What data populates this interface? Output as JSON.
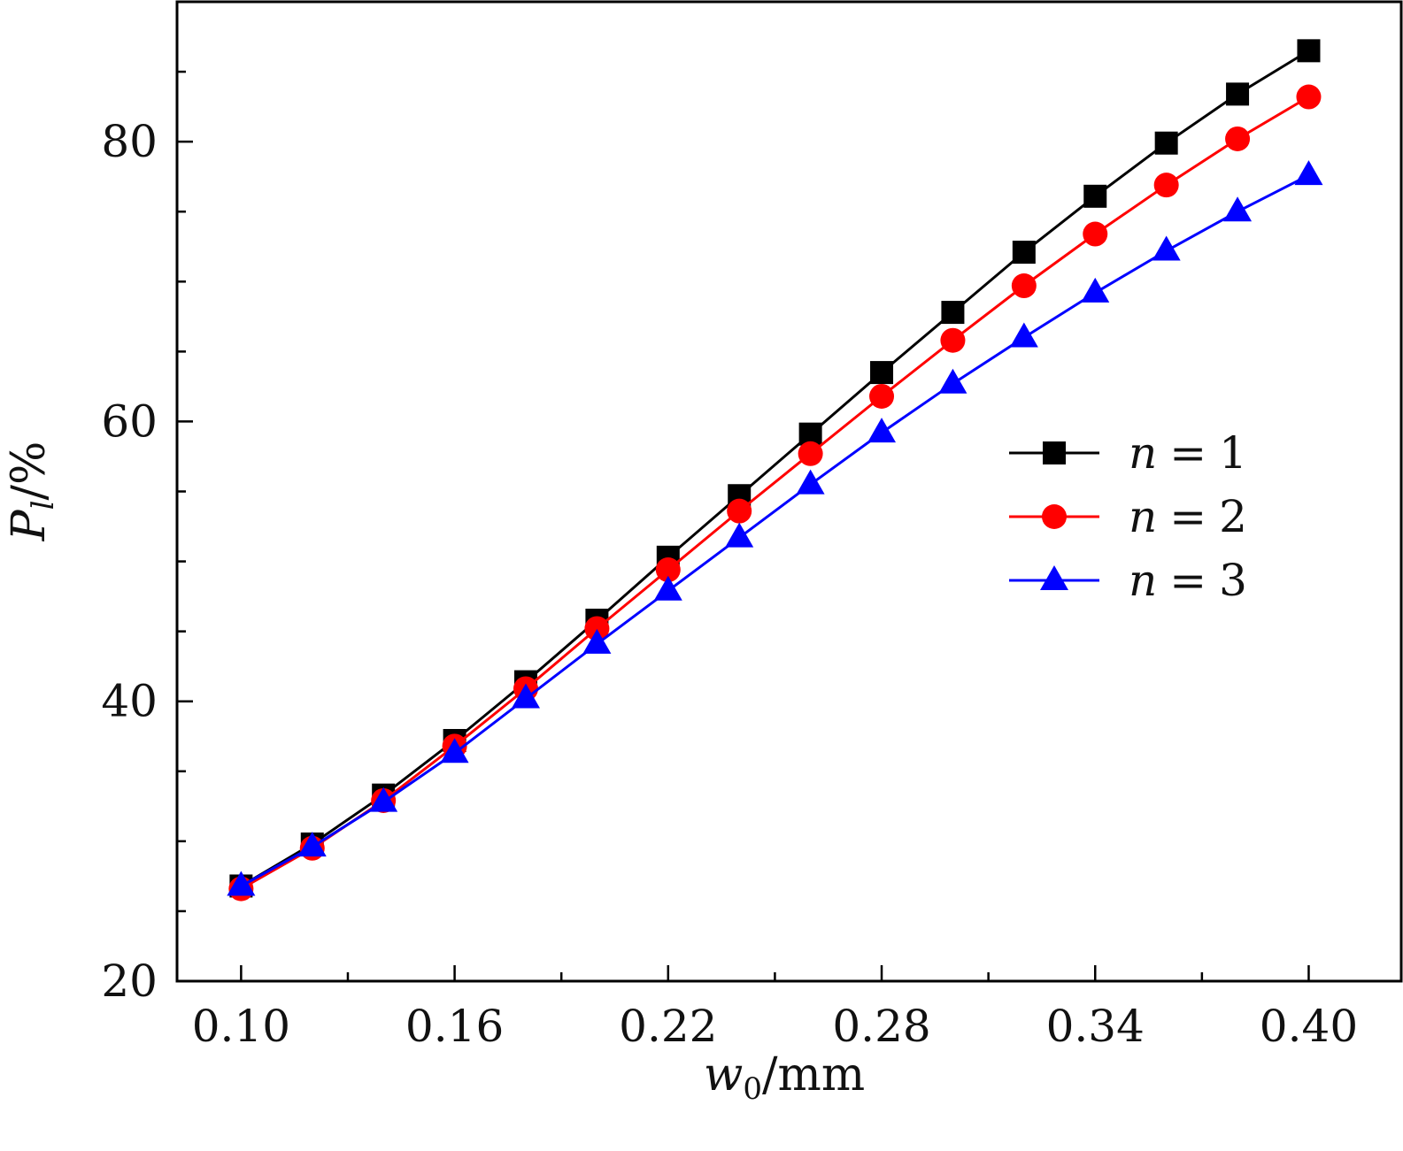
{
  "chart_data": {
    "type": "line",
    "title": "",
    "xlabel": "w0/mm",
    "xlabel_main": "w",
    "xlabel_sub": "0",
    "xlabel_unit": "/mm",
    "ylabel": "Pl/%",
    "ylabel_main": "P",
    "ylabel_sub": "l",
    "ylabel_unit": "/%",
    "xlim": [
      0.082,
      0.426
    ],
    "ylim": [
      20,
      90
    ],
    "x_ticks": [
      0.1,
      0.16,
      0.22,
      0.28,
      0.34,
      0.4
    ],
    "x_tick_labels": [
      "0.10",
      "0.16",
      "0.22",
      "0.28",
      "0.34",
      "0.40"
    ],
    "x_minor_ticks": [
      0.13,
      0.19,
      0.25,
      0.31,
      0.37
    ],
    "y_ticks": [
      20,
      40,
      60,
      80
    ],
    "y_tick_labels": [
      "20",
      "40",
      "60",
      "80"
    ],
    "y_minor_ticks": [
      25,
      30,
      35,
      45,
      50,
      55,
      65,
      70,
      75,
      85
    ],
    "grid": false,
    "legend_position": "center-right",
    "x": [
      0.1,
      0.12,
      0.14,
      0.16,
      0.18,
      0.2,
      0.22,
      0.24,
      0.26,
      0.28,
      0.3,
      0.32,
      0.34,
      0.36,
      0.38,
      0.4
    ],
    "series": [
      {
        "name": "n = 1",
        "legend_var": "n",
        "legend_eq": "=",
        "legend_val": "1",
        "color": "#000000",
        "marker": "square",
        "values": [
          26.8,
          29.8,
          33.3,
          37.2,
          41.4,
          45.8,
          50.3,
          54.7,
          59.1,
          63.5,
          67.8,
          72.1,
          76.1,
          79.9,
          83.4,
          86.5
        ]
      },
      {
        "name": "n = 2",
        "legend_var": "n",
        "legend_eq": "=",
        "legend_val": "2",
        "color": "#ff0000",
        "marker": "circle",
        "values": [
          26.6,
          29.5,
          32.9,
          36.8,
          40.9,
          45.2,
          49.4,
          53.6,
          57.7,
          61.8,
          65.8,
          69.7,
          73.4,
          76.9,
          80.2,
          83.2
        ]
      },
      {
        "name": "n = 3",
        "legend_var": "n",
        "legend_eq": "=",
        "legend_val": "3",
        "color": "#0000ff",
        "marker": "triangle",
        "values": [
          26.8,
          29.6,
          32.8,
          36.3,
          40.2,
          44.1,
          47.9,
          51.7,
          55.5,
          59.2,
          62.7,
          66.0,
          69.2,
          72.2,
          75.0,
          77.6
        ]
      }
    ]
  }
}
